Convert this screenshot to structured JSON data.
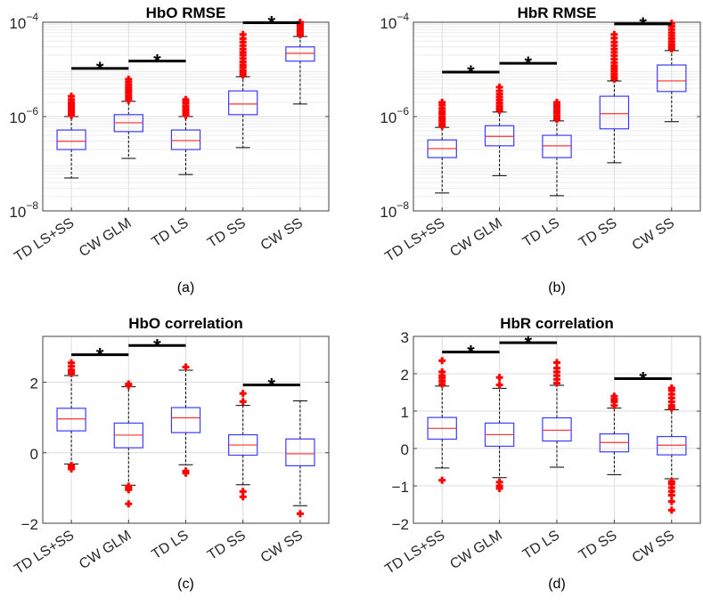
{
  "chart_data": [
    {
      "type": "box",
      "title": "HbO RMSE",
      "caption": "(a)",
      "yscale": "log",
      "ylim": [
        1e-08,
        0.0001
      ],
      "yticks": [
        1e-08,
        1e-06,
        0.0001
      ],
      "ytick_labels": [
        {
          "base": "10",
          "exp": "−8"
        },
        {
          "base": "10",
          "exp": "−6"
        },
        {
          "base": "10",
          "exp": "−4"
        }
      ],
      "grid": true,
      "categories": [
        "TD LS+SS",
        "CW GLM",
        "TD LS",
        "TD SS",
        "CW SS"
      ],
      "boxes": [
        {
          "whisker_low": 5e-08,
          "q1": 2e-07,
          "median": 3e-07,
          "q3": 5.2e-07,
          "whisker_high": 1e-06,
          "outliers": [
            1.05e-06,
            1.15e-06,
            1.3e-06,
            1.45e-06,
            1.6e-06,
            1.8e-06,
            2e-06,
            2.3e-06,
            2.7e-06
          ]
        },
        {
          "whisker_low": 1.3e-07,
          "q1": 4.8e-07,
          "median": 7.4e-07,
          "q3": 1.1e-06,
          "whisker_high": 2.1e-06,
          "outliers": [
            2.2e-06,
            2.5e-06,
            2.8e-06,
            3.2e-06,
            3.6e-06,
            4.1e-06,
            4.7e-06,
            5.4e-06,
            6.2e-06
          ]
        },
        {
          "whisker_low": 5.9e-08,
          "q1": 2e-07,
          "median": 3.1e-07,
          "q3": 5.2e-07,
          "whisker_high": 1e-06,
          "outliers": [
            1.05e-06,
            1.15e-06,
            1.3e-06,
            1.45e-06,
            1.65e-06,
            1.9e-06,
            2.1e-06,
            2.3e-06
          ]
        },
        {
          "whisker_low": 2.2e-07,
          "q1": 1.1e-06,
          "median": 1.85e-06,
          "q3": 3.5e-06,
          "whisker_high": 7e-06,
          "outliers": [
            7.5e-06,
            8.5e-06,
            9.5e-06,
            1.1e-05,
            1.25e-05,
            1.45e-05,
            1.7e-05,
            2e-05,
            2.3e-05,
            2.7e-05,
            3.2e-05,
            3.8e-05,
            4.5e-05,
            5.5e-05
          ]
        },
        {
          "whisker_low": 1.85e-06,
          "q1": 1.5e-05,
          "median": 2.2e-05,
          "q3": 3e-05,
          "whisker_high": 5e-05,
          "outliers": [
            5.4e-05,
            6e-05,
            6.7e-05,
            7.5e-05,
            8.4e-05,
            9.2e-05,
            0.0001
          ]
        }
      ],
      "significance": [
        {
          "from": 1,
          "to": 2,
          "y": 1.05e-05,
          "label": "*"
        },
        {
          "from": 2,
          "to": 3,
          "y": 1.5e-05,
          "label": "*"
        },
        {
          "from": 4,
          "to": 5,
          "y": 9.8e-05,
          "label": "*"
        }
      ]
    },
    {
      "type": "box",
      "title": "HbR RMSE",
      "caption": "(b)",
      "yscale": "log",
      "ylim": [
        1e-08,
        0.0001
      ],
      "yticks": [
        1e-08,
        1e-06,
        0.0001
      ],
      "ytick_labels": [
        {
          "base": "10",
          "exp": "−8"
        },
        {
          "base": "10",
          "exp": "−6"
        },
        {
          "base": "10",
          "exp": "−4"
        }
      ],
      "grid": true,
      "categories": [
        "TD LS+SS",
        "CW GLM",
        "TD LS",
        "TD SS",
        "CW SS"
      ],
      "boxes": [
        {
          "whisker_low": 2.4e-08,
          "q1": 1.35e-07,
          "median": 2.1e-07,
          "q3": 3.2e-07,
          "whisker_high": 5.9e-07,
          "outliers": [
            6.3e-07,
            7e-07,
            8e-07,
            9e-07,
            1e-06,
            1.15e-06,
            1.3e-06,
            1.5e-06,
            1.75e-06,
            2e-06
          ]
        },
        {
          "whisker_low": 5.6e-08,
          "q1": 2.4e-07,
          "median": 3.8e-07,
          "q3": 6.4e-07,
          "whisker_high": 1.25e-06,
          "outliers": [
            1.35e-06,
            1.5e-06,
            1.7e-06,
            1.95e-06,
            2.25e-06,
            2.6e-06,
            3e-06,
            3.5e-06,
            4.2e-06
          ]
        },
        {
          "whisker_low": 2.1e-08,
          "q1": 1.35e-07,
          "median": 2.4e-07,
          "q3": 4e-07,
          "whisker_high": 8.1e-07,
          "outliers": [
            8.7e-07,
            9.5e-07,
            1.05e-06,
            1.2e-06,
            1.35e-06,
            1.55e-06,
            1.75e-06,
            2e-06
          ]
        },
        {
          "whisker_low": 1.05e-07,
          "q1": 5.5e-07,
          "median": 1.15e-06,
          "q3": 2.7e-06,
          "whisker_high": 5.7e-06,
          "outliers": [
            6.2e-06,
            7e-06,
            8e-06,
            9.2e-06,
            1.05e-05,
            1.2e-05,
            1.4e-05,
            1.65e-05,
            1.95e-05,
            2.3e-05,
            2.7e-05,
            3.2e-05,
            3.8e-05,
            4.6e-05,
            5.5e-05
          ]
        },
        {
          "whisker_low": 7.8e-07,
          "q1": 3.4e-06,
          "median": 5.7e-06,
          "q3": 1.24e-05,
          "whisker_high": 2.5e-05,
          "outliers": [
            2.7e-05,
            3e-05,
            3.4e-05,
            3.9e-05,
            4.5e-05,
            5.2e-05,
            6e-05,
            7e-05,
            8.2e-05,
            9.5e-05
          ]
        }
      ],
      "significance": [
        {
          "from": 1,
          "to": 2,
          "y": 8.8e-06,
          "label": "*"
        },
        {
          "from": 2,
          "to": 3,
          "y": 1.35e-05,
          "label": "*"
        },
        {
          "from": 4,
          "to": 5,
          "y": 9.2e-05,
          "label": "*"
        }
      ]
    },
    {
      "type": "box",
      "title": "HbO correlation",
      "caption": "(c)",
      "yscale": "linear",
      "ylim": [
        -2,
        3.3
      ],
      "yticks": [
        -2,
        0,
        2
      ],
      "ytick_labels": [
        "−2",
        "0",
        "2"
      ],
      "grid": true,
      "categories": [
        "TD LS+SS",
        "CW GLM",
        "TD LS",
        "TD SS",
        "CW SS"
      ],
      "boxes": [
        {
          "whisker_low": -0.32,
          "q1": 0.62,
          "median": 0.96,
          "q3": 1.26,
          "whisker_high": 2.19,
          "outliers": [
            2.25,
            2.3,
            2.35,
            2.45,
            2.55,
            -0.36,
            -0.42,
            -0.46
          ]
        },
        {
          "whisker_low": -0.92,
          "q1": 0.14,
          "median": 0.5,
          "q3": 0.84,
          "whisker_high": 1.87,
          "outliers": [
            1.9,
            1.95,
            -0.95,
            -1.0,
            -1.05,
            -1.45
          ]
        },
        {
          "whisker_low": -0.34,
          "q1": 0.57,
          "median": 0.99,
          "q3": 1.28,
          "whisker_high": 2.34,
          "outliers": [
            2.43,
            -0.52,
            -0.58
          ]
        },
        {
          "whisker_low": -0.91,
          "q1": -0.07,
          "median": 0.22,
          "q3": 0.51,
          "whisker_high": 1.34,
          "outliers": [
            1.45,
            1.68,
            -1.1,
            -1.25
          ]
        },
        {
          "whisker_low": -1.5,
          "q1": -0.37,
          "median": -0.03,
          "q3": 0.39,
          "whisker_high": 1.47,
          "outliers": [
            -1.73
          ]
        }
      ],
      "significance": [
        {
          "from": 1,
          "to": 2,
          "y": 2.78,
          "label": "*"
        },
        {
          "from": 2,
          "to": 3,
          "y": 3.04,
          "label": "*"
        },
        {
          "from": 4,
          "to": 5,
          "y": 1.92,
          "label": "*"
        }
      ]
    },
    {
      "type": "box",
      "title": "HbR correlation",
      "caption": "(d)",
      "yscale": "linear",
      "ylim": [
        -2,
        3
      ],
      "yticks": [
        -2,
        -1,
        0,
        1,
        2,
        3
      ],
      "ytick_labels": [
        "−2",
        "−1",
        "0",
        "1",
        "2",
        "3"
      ],
      "grid": true,
      "categories": [
        "TD LS+SS",
        "CW GLM",
        "TD LS",
        "TD SS",
        "CW SS"
      ],
      "boxes": [
        {
          "whisker_low": -0.52,
          "q1": 0.25,
          "median": 0.54,
          "q3": 0.83,
          "whisker_high": 1.67,
          "outliers": [
            1.72,
            1.8,
            1.88,
            1.95,
            2.05,
            2.35,
            -0.85
          ]
        },
        {
          "whisker_low": -0.78,
          "q1": 0.06,
          "median": 0.37,
          "q3": 0.68,
          "whisker_high": 1.61,
          "outliers": [
            1.7,
            1.9,
            -0.9,
            -1.0,
            -1.07
          ]
        },
        {
          "whisker_low": -0.5,
          "q1": 0.2,
          "median": 0.49,
          "q3": 0.82,
          "whisker_high": 1.69,
          "outliers": [
            1.75,
            1.85,
            1.95,
            2.05,
            2.15,
            2.3
          ]
        },
        {
          "whisker_low": -0.7,
          "q1": -0.09,
          "median": 0.16,
          "q3": 0.39,
          "whisker_high": 1.08,
          "outliers": [
            1.15,
            1.25,
            1.32,
            1.4
          ]
        },
        {
          "whisker_low": -0.81,
          "q1": -0.17,
          "median": 0.09,
          "q3": 0.32,
          "whisker_high": 1.04,
          "outliers": [
            1.08,
            1.15,
            1.25,
            1.35,
            1.45,
            1.55,
            1.62,
            -0.88,
            -0.95,
            -1.05,
            -1.15,
            -1.25,
            -1.42,
            -1.65
          ]
        }
      ],
      "significance": [
        {
          "from": 1,
          "to": 2,
          "y": 2.58,
          "label": "*"
        },
        {
          "from": 2,
          "to": 3,
          "y": 2.83,
          "label": "*"
        },
        {
          "from": 4,
          "to": 5,
          "y": 1.87,
          "label": "*"
        }
      ]
    }
  ]
}
